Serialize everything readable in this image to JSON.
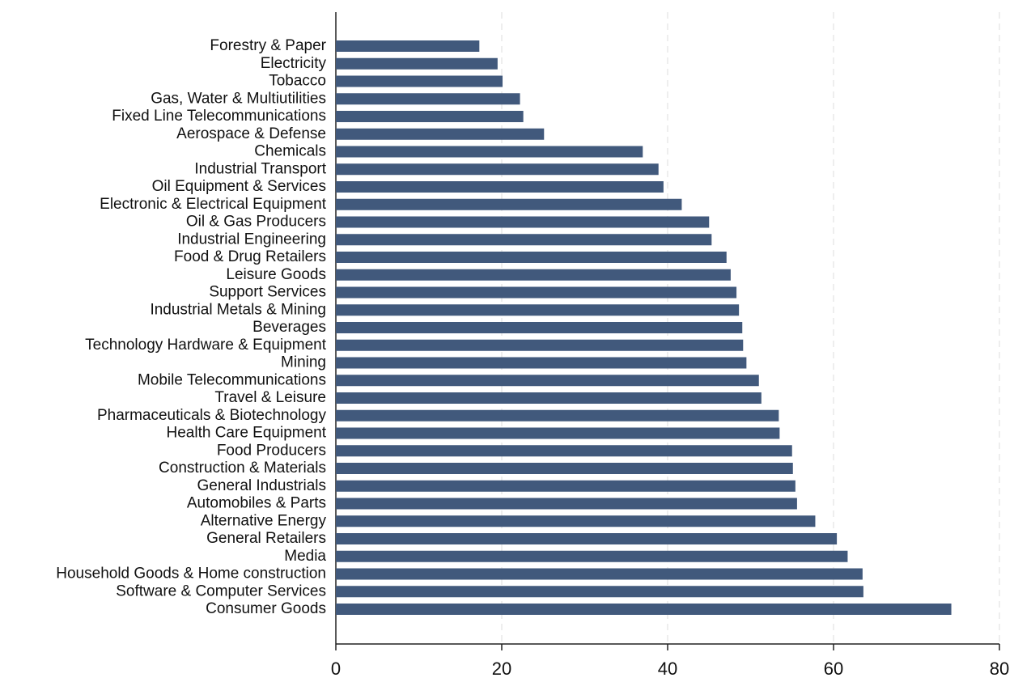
{
  "chart_data": {
    "type": "barh",
    "color": "#41597c",
    "grid": true,
    "categories": [
      "Forestry & Paper",
      "Electricity",
      "Tobacco",
      "Gas, Water & Multiutilities",
      "Fixed Line Telecommunications",
      "Aerospace & Defense",
      "Chemicals",
      "Industrial Transport",
      "Oil Equipment & Services",
      "Electronic & Electrical Equipment",
      "Oil & Gas Producers",
      "Industrial Engineering",
      "Food & Drug Retailers",
      "Leisure Goods",
      "Support Services",
      "Industrial Metals & Mining",
      "Beverages",
      "Technology Hardware & Equipment",
      "Mining",
      "Mobile Telecommunications",
      "Travel & Leisure",
      "Pharmaceuticals & Biotechnology",
      "Health Care Equipment",
      "Food Producers",
      "Construction & Materials",
      "General Industrials",
      "Automobiles & Parts",
      "Alternative Energy",
      "General Retailers",
      "Media",
      "Household Goods & Home construction",
      "Software & Computer Services",
      "Consumer Goods"
    ],
    "values": [
      17.3,
      19.5,
      20.1,
      22.2,
      22.6,
      25.1,
      37.0,
      38.9,
      39.5,
      41.7,
      45.0,
      45.3,
      47.1,
      47.6,
      48.3,
      48.6,
      49.0,
      49.1,
      49.5,
      51.0,
      51.3,
      53.4,
      53.5,
      55.0,
      55.1,
      55.4,
      55.6,
      57.8,
      60.4,
      61.7,
      63.5,
      63.6,
      74.2
    ],
    "xlim": [
      0,
      80
    ],
    "xticks": [
      0,
      20,
      40,
      60,
      80
    ]
  }
}
